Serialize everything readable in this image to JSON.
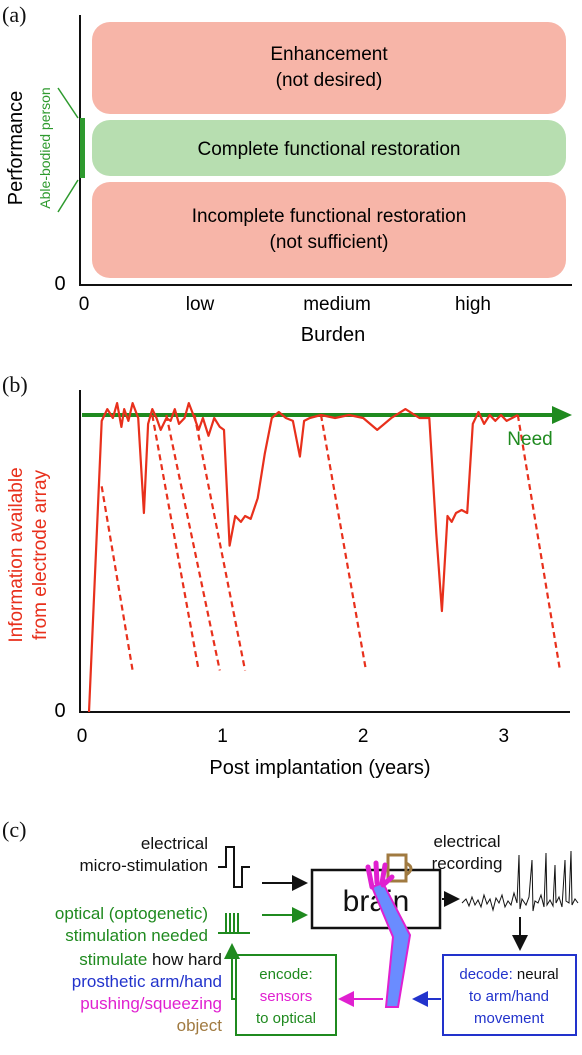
{
  "panel_a": {
    "label": "(a)",
    "y_label": "Performance",
    "y_zero": "0",
    "able_bodied": "Able-bodied person",
    "x_label": "Burden",
    "x_ticks": [
      "0",
      "low",
      "medium",
      "high"
    ],
    "zones": [
      {
        "line1": "Enhancement",
        "line2": "(not desired)",
        "color": "#f7b5a8"
      },
      {
        "line1": "Complete functional restoration",
        "line2": "",
        "color": "#b7deb0"
      },
      {
        "line1": "Incomplete functional restoration",
        "line2": "(not sufficient)",
        "color": "#f7b5a8"
      }
    ],
    "able_color": "#2e9a2e"
  },
  "chart_data": {
    "type": "line",
    "x_label": "Post implantation (years)",
    "y_label_line1": "Information available",
    "y_label_line2": "from electrode array",
    "y_zero": "0",
    "x_ticks": [
      "0",
      "1",
      "2",
      "3"
    ],
    "xlim": [
      0,
      3.4
    ],
    "need_label": "Need",
    "need_level": 1.0,
    "series_color": "#e8301c",
    "need_color": "#1f8a1f",
    "series": [
      {
        "x": [
          0.05,
          0.14,
          0.18,
          0.22,
          0.25,
          0.28,
          0.3,
          0.33,
          0.36,
          0.4,
          0.44,
          0.47,
          0.5,
          0.53,
          0.56,
          0.6,
          0.63,
          0.66,
          0.69,
          0.73,
          0.76,
          0.8,
          0.83,
          0.86,
          0.9,
          0.94,
          0.98,
          1.01,
          1.05,
          1.09,
          1.13,
          1.16,
          1.2,
          1.25,
          1.3,
          1.35,
          1.4,
          1.45,
          1.5,
          1.55,
          1.58,
          1.62,
          1.7,
          1.8,
          1.9,
          2.0,
          2.1,
          2.2,
          2.3,
          2.4,
          2.47,
          2.52,
          2.56,
          2.6,
          2.63,
          2.66,
          2.7,
          2.74,
          2.78,
          2.82,
          2.86,
          2.9,
          2.94,
          2.98,
          3.02,
          3.06,
          3.1
        ],
        "y": [
          0.0,
          0.98,
          1.02,
          0.99,
          1.04,
          0.96,
          1.02,
          0.98,
          1.04,
          0.99,
          0.67,
          0.97,
          1.02,
          0.99,
          0.95,
          0.99,
          0.98,
          1.02,
          0.97,
          0.99,
          1.04,
          0.99,
          0.95,
          0.99,
          0.93,
          0.99,
          0.96,
          0.95,
          0.56,
          0.66,
          0.64,
          0.66,
          0.65,
          0.72,
          0.87,
          0.99,
          1.01,
          0.99,
          0.98,
          0.86,
          0.98,
          0.99,
          1.0,
          0.99,
          1.0,
          0.99,
          0.95,
          0.99,
          1.02,
          0.99,
          0.99,
          0.6,
          0.34,
          0.66,
          0.64,
          0.67,
          0.68,
          0.67,
          0.97,
          1.01,
          0.97,
          1.0,
          0.98,
          1.0,
          0.98,
          0.99,
          1.0
        ],
        "name": ""
      }
    ],
    "dashed_declines": [
      {
        "x": [
          0.14,
          0.36
        ],
        "y": [
          0.76,
          0.14
        ]
      },
      {
        "x": [
          0.5,
          0.83
        ],
        "y": [
          1.0,
          0.14
        ]
      },
      {
        "x": [
          0.6,
          0.98
        ],
        "y": [
          1.0,
          0.14
        ]
      },
      {
        "x": [
          0.8,
          1.16
        ],
        "y": [
          1.0,
          0.14
        ]
      },
      {
        "x": [
          1.7,
          2.02
        ],
        "y": [
          1.0,
          0.14
        ]
      },
      {
        "x": [
          3.1,
          3.4
        ],
        "y": [
          1.0,
          0.14
        ]
      }
    ]
  },
  "panel_c": {
    "label": "(c)",
    "electrical_stim_line1": "electrical",
    "electrical_stim_line2": "micro-stimulation",
    "optical_line1": "optical (optogenetic)",
    "optical_line2": "stimulation needed",
    "brain": "brain",
    "recording_line1": "electrical",
    "recording_line2": "recording",
    "decode_line1_colored": "decode:",
    "decode_line1_rest": " neural",
    "decode_line2": "to arm/hand",
    "decode_line3": "movement",
    "encode_line1": "encode:",
    "encode_line2": "sensors",
    "encode_line3": "to optical",
    "legend_stimulate": "stimulate",
    "legend_how_hard": " how hard",
    "legend_prosthetic": "prosthetic arm/hand",
    "legend_pushing": "pushing/squeezing",
    "legend_object": "object",
    "colors": {
      "green": "#1f8a1f",
      "blue": "#2233cc",
      "magenta": "#e020d0",
      "brown": "#a07a40",
      "black": "#111111"
    }
  }
}
